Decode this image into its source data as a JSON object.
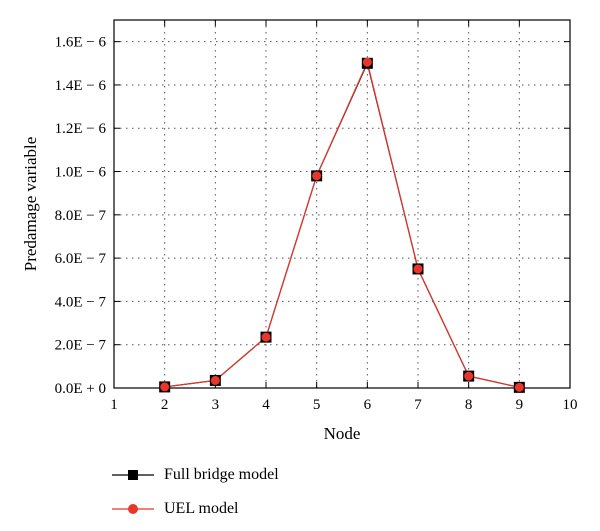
{
  "chart_data": {
    "type": "line",
    "xlabel": "Node",
    "ylabel": "Predamage variable",
    "xlim": [
      1,
      10
    ],
    "ylim": [
      0,
      1.7e-06
    ],
    "grid": true,
    "x_ticks": [
      "1",
      "2",
      "3",
      "4",
      "5",
      "6",
      "7",
      "8",
      "9",
      "10"
    ],
    "y_ticks": [
      {
        "value": 0,
        "label": "0.0E + 0"
      },
      {
        "value": 2e-07,
        "label": "2.0E − 7"
      },
      {
        "value": 4e-07,
        "label": "4.0E − 7"
      },
      {
        "value": 6e-07,
        "label": "6.0E − 7"
      },
      {
        "value": 8e-07,
        "label": "8.0E − 7"
      },
      {
        "value": 1e-06,
        "label": "1.0E − 6"
      },
      {
        "value": 1.2e-06,
        "label": "1.2E − 6"
      },
      {
        "value": 1.4e-06,
        "label": "1.4E − 6"
      },
      {
        "value": 1.6e-06,
        "label": "1.6E − 6"
      }
    ],
    "x": [
      2,
      3,
      4,
      5,
      6,
      7,
      8,
      9
    ],
    "series": [
      {
        "name": "Full bridge model",
        "marker": "square",
        "color": "#000000",
        "values": [
          5e-09,
          3.5e-08,
          2.35e-07,
          9.8e-07,
          1.5e-06,
          5.5e-07,
          5.5e-08,
          3e-09
        ]
      },
      {
        "name": "UEL model",
        "marker": "circle",
        "color": "#e8362b",
        "values": [
          5e-09,
          3.5e-08,
          2.35e-07,
          9.8e-07,
          1.505e-06,
          5.5e-07,
          5.5e-08,
          3e-09
        ]
      }
    ],
    "legend_position": "bottom-left"
  }
}
